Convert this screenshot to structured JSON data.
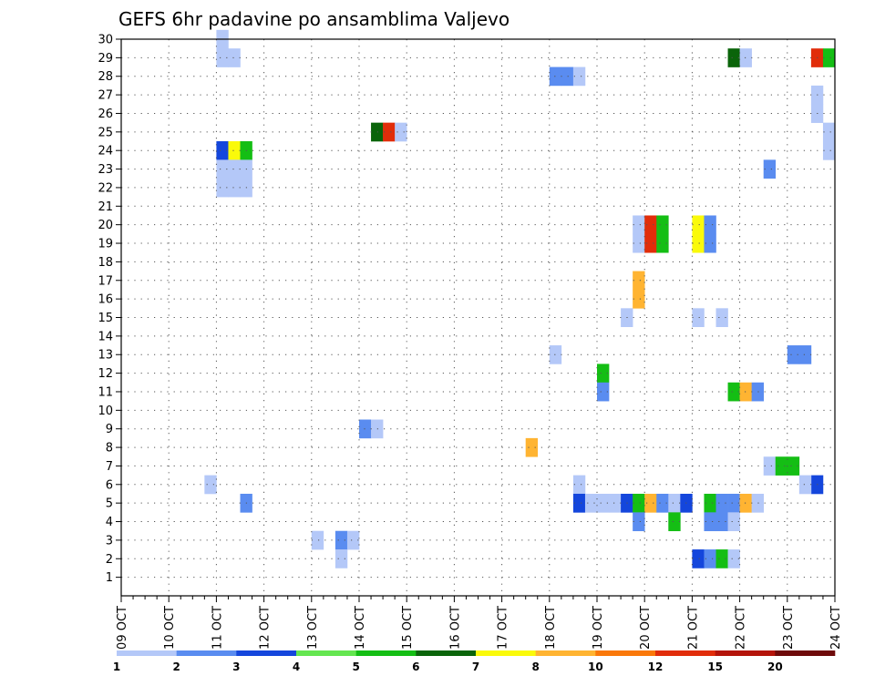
{
  "chart_data": {
    "type": "heatmap",
    "title": "GEFS 6hr padavine po ansamblima Valjevo",
    "xlabel": "",
    "ylabel": "",
    "x_tick_labels": [
      "09 OCT",
      "10 OCT",
      "11 OCT",
      "12 OCT",
      "13 OCT",
      "14 OCT",
      "15 OCT",
      "16 OCT",
      "17 OCT",
      "18 OCT",
      "19 OCT",
      "20 OCT",
      "21 OCT",
      "22 OCT",
      "23 OCT",
      "24 OCT"
    ],
    "xlim_steps": [
      0,
      60
    ],
    "y_ticks": [
      1,
      2,
      3,
      4,
      5,
      6,
      7,
      8,
      9,
      10,
      11,
      12,
      13,
      14,
      15,
      16,
      17,
      18,
      19,
      20,
      21,
      22,
      23,
      24,
      25,
      26,
      27,
      28,
      29,
      30
    ],
    "grid": true,
    "colorbar": {
      "placement": "bottom",
      "labels": [
        "1",
        "2",
        "3",
        "4",
        "5",
        "6",
        "7",
        "8",
        "10",
        "12",
        "15",
        "20"
      ],
      "colors": [
        "#b4c8f8",
        "#5a8cf0",
        "#1446dc",
        "#64e650",
        "#14be14",
        "#0a640a",
        "#fafa0a",
        "#ffb432",
        "#fa780a",
        "#e12d0a",
        "#b4140a",
        "#6e0a0a"
      ]
    },
    "cells_note": "step index = 6-hour step after 09 OCT 00Z; member = ensemble member (y); class = colour class index 1-12",
    "cells": [
      {
        "step": 8,
        "member": 30,
        "class": 1
      },
      {
        "step": 8,
        "member": 29,
        "class": 1
      },
      {
        "step": 9,
        "member": 29,
        "class": 1
      },
      {
        "step": 8,
        "member": 24,
        "class": 3
      },
      {
        "step": 9,
        "member": 24,
        "class": 7
      },
      {
        "step": 10,
        "member": 24,
        "class": 5
      },
      {
        "step": 8,
        "member": 23,
        "class": 1
      },
      {
        "step": 9,
        "member": 23,
        "class": 1
      },
      {
        "step": 10,
        "member": 23,
        "class": 1
      },
      {
        "step": 8,
        "member": 22,
        "class": 1
      },
      {
        "step": 9,
        "member": 22,
        "class": 1
      },
      {
        "step": 10,
        "member": 22,
        "class": 1
      },
      {
        "step": 7,
        "member": 6,
        "class": 1
      },
      {
        "step": 10,
        "member": 5,
        "class": 2
      },
      {
        "step": 16,
        "member": 3,
        "class": 1
      },
      {
        "step": 18,
        "member": 3,
        "class": 2
      },
      {
        "step": 19,
        "member": 3,
        "class": 1
      },
      {
        "step": 18,
        "member": 2,
        "class": 1
      },
      {
        "step": 20,
        "member": 9,
        "class": 2
      },
      {
        "step": 21,
        "member": 9,
        "class": 1
      },
      {
        "step": 21,
        "member": 25,
        "class": 6
      },
      {
        "step": 22,
        "member": 25,
        "class": 10
      },
      {
        "step": 23,
        "member": 25,
        "class": 1
      },
      {
        "step": 34,
        "member": 8,
        "class": 8
      },
      {
        "step": 36,
        "member": 28,
        "class": 2
      },
      {
        "step": 37,
        "member": 28,
        "class": 2
      },
      {
        "step": 38,
        "member": 28,
        "class": 1
      },
      {
        "step": 36,
        "member": 13,
        "class": 1
      },
      {
        "step": 38,
        "member": 6,
        "class": 1
      },
      {
        "step": 38,
        "member": 5,
        "class": 3
      },
      {
        "step": 39,
        "member": 5,
        "class": 1
      },
      {
        "step": 40,
        "member": 5,
        "class": 1
      },
      {
        "step": 41,
        "member": 5,
        "class": 1
      },
      {
        "step": 40,
        "member": 12,
        "class": 5
      },
      {
        "step": 40,
        "member": 11,
        "class": 2
      },
      {
        "step": 42,
        "member": 15,
        "class": 1
      },
      {
        "step": 42,
        "member": 5,
        "class": 3
      },
      {
        "step": 43,
        "member": 5,
        "class": 5
      },
      {
        "step": 44,
        "member": 5,
        "class": 8
      },
      {
        "step": 45,
        "member": 5,
        "class": 2
      },
      {
        "step": 46,
        "member": 5,
        "class": 1
      },
      {
        "step": 47,
        "member": 5,
        "class": 3
      },
      {
        "step": 43,
        "member": 20,
        "class": 1
      },
      {
        "step": 44,
        "member": 20,
        "class": 10
      },
      {
        "step": 45,
        "member": 20,
        "class": 5
      },
      {
        "step": 43,
        "member": 19,
        "class": 1
      },
      {
        "step": 44,
        "member": 19,
        "class": 10
      },
      {
        "step": 45,
        "member": 19,
        "class": 5
      },
      {
        "step": 43,
        "member": 17,
        "class": 8
      },
      {
        "step": 43,
        "member": 16,
        "class": 8
      },
      {
        "step": 43,
        "member": 4,
        "class": 2
      },
      {
        "step": 46,
        "member": 4,
        "class": 5
      },
      {
        "step": 48,
        "member": 20,
        "class": 7
      },
      {
        "step": 49,
        "member": 20,
        "class": 2
      },
      {
        "step": 48,
        "member": 19,
        "class": 7
      },
      {
        "step": 49,
        "member": 19,
        "class": 2
      },
      {
        "step": 48,
        "member": 15,
        "class": 1
      },
      {
        "step": 48,
        "member": 2,
        "class": 3
      },
      {
        "step": 49,
        "member": 2,
        "class": 2
      },
      {
        "step": 50,
        "member": 2,
        "class": 5
      },
      {
        "step": 51,
        "member": 2,
        "class": 1
      },
      {
        "step": 49,
        "member": 5,
        "class": 5
      },
      {
        "step": 50,
        "member": 5,
        "class": 2
      },
      {
        "step": 51,
        "member": 5,
        "class": 2
      },
      {
        "step": 52,
        "member": 5,
        "class": 8
      },
      {
        "step": 53,
        "member": 5,
        "class": 1
      },
      {
        "step": 49,
        "member": 4,
        "class": 2
      },
      {
        "step": 50,
        "member": 4,
        "class": 2
      },
      {
        "step": 51,
        "member": 4,
        "class": 1
      },
      {
        "step": 50,
        "member": 15,
        "class": 1
      },
      {
        "step": 51,
        "member": 29,
        "class": 6
      },
      {
        "step": 52,
        "member": 29,
        "class": 1
      },
      {
        "step": 51,
        "member": 11,
        "class": 5
      },
      {
        "step": 52,
        "member": 11,
        "class": 8
      },
      {
        "step": 53,
        "member": 11,
        "class": 2
      },
      {
        "step": 54,
        "member": 23,
        "class": 2
      },
      {
        "step": 54,
        "member": 7,
        "class": 1
      },
      {
        "step": 55,
        "member": 7,
        "class": 5
      },
      {
        "step": 56,
        "member": 7,
        "class": 5
      },
      {
        "step": 56,
        "member": 13,
        "class": 2
      },
      {
        "step": 57,
        "member": 13,
        "class": 2
      },
      {
        "step": 58,
        "member": 29,
        "class": 10
      },
      {
        "step": 59,
        "member": 29,
        "class": 5
      },
      {
        "step": 58,
        "member": 27,
        "class": 1
      },
      {
        "step": 58,
        "member": 26,
        "class": 1
      },
      {
        "step": 59,
        "member": 25,
        "class": 1
      },
      {
        "step": 59,
        "member": 24,
        "class": 1
      },
      {
        "step": 58,
        "member": 6,
        "class": 3
      },
      {
        "step": 57,
        "member": 6,
        "class": 1
      }
    ]
  }
}
